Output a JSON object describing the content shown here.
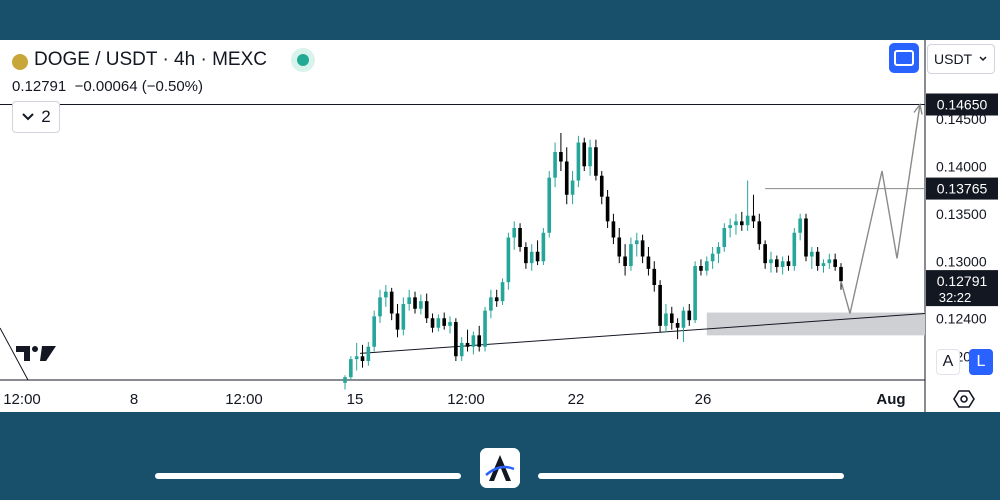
{
  "header": {
    "symbol": "DOGE / USDT · 4h · MEXC",
    "last": "0.12791",
    "change": "−0.00064",
    "change_pct": "(−0.50%)",
    "indicators_count": "2",
    "currency": "USDT",
    "mode_auto": "A",
    "mode_log": "L"
  },
  "icons": {
    "coin": "doge-coin-icon",
    "live": "market-open-icon",
    "fullscreen": "fullscreen-icon",
    "chevron": "chevron-down-icon",
    "settings": "settings-icon",
    "watermark": "tradingview-logo-icon",
    "brand": "brand-logo-icon"
  },
  "colors": {
    "up": "#26a69a",
    "down": "#000000",
    "accent": "#2962ff",
    "background": "#184f6b"
  },
  "chart_data": {
    "type": "candlestick",
    "symbol": "DOGE / USDT",
    "interval": "4h",
    "exchange": "MEXC",
    "x_ticks": [
      "12:00",
      "8",
      "12:00",
      "15",
      "12:00",
      "22",
      "26",
      "Aug"
    ],
    "y_ticks": [
      0.12,
      0.124,
      0.13,
      0.135,
      0.14,
      0.145
    ],
    "y_tick_labels": [
      "0.12000",
      "0.12400",
      "0.13000",
      "0.13500",
      "0.14000",
      "0.14500"
    ],
    "ylim": [
      0.1175,
      0.1475
    ],
    "price_labels": [
      {
        "value": 0.1465,
        "text": "0.14650",
        "countdown": ""
      },
      {
        "value": 0.13765,
        "text": "0.13765",
        "countdown": ""
      },
      {
        "value": 0.12791,
        "text": "0.12791",
        "countdown": "32:22"
      }
    ],
    "candles": [
      {
        "o": 0.1172,
        "h": 0.118,
        "l": 0.1165,
        "c": 0.1178
      },
      {
        "o": 0.1178,
        "h": 0.12,
        "l": 0.1175,
        "c": 0.1197
      },
      {
        "o": 0.1197,
        "h": 0.1214,
        "l": 0.1185,
        "c": 0.12
      },
      {
        "o": 0.12,
        "h": 0.1212,
        "l": 0.1188,
        "c": 0.1195
      },
      {
        "o": 0.1195,
        "h": 0.1215,
        "l": 0.119,
        "c": 0.121
      },
      {
        "o": 0.121,
        "h": 0.1248,
        "l": 0.1205,
        "c": 0.1242
      },
      {
        "o": 0.1242,
        "h": 0.127,
        "l": 0.1235,
        "c": 0.1262
      },
      {
        "o": 0.1262,
        "h": 0.1275,
        "l": 0.1252,
        "c": 0.1268
      },
      {
        "o": 0.1268,
        "h": 0.1272,
        "l": 0.1238,
        "c": 0.1245
      },
      {
        "o": 0.1245,
        "h": 0.1255,
        "l": 0.122,
        "c": 0.1228
      },
      {
        "o": 0.1228,
        "h": 0.1262,
        "l": 0.1222,
        "c": 0.1255
      },
      {
        "o": 0.1255,
        "h": 0.127,
        "l": 0.1248,
        "c": 0.1262
      },
      {
        "o": 0.1262,
        "h": 0.1268,
        "l": 0.1245,
        "c": 0.125
      },
      {
        "o": 0.125,
        "h": 0.1265,
        "l": 0.1244,
        "c": 0.1258
      },
      {
        "o": 0.1258,
        "h": 0.1266,
        "l": 0.1235,
        "c": 0.124
      },
      {
        "o": 0.124,
        "h": 0.1245,
        "l": 0.1225,
        "c": 0.123
      },
      {
        "o": 0.123,
        "h": 0.1244,
        "l": 0.1226,
        "c": 0.124
      },
      {
        "o": 0.124,
        "h": 0.1246,
        "l": 0.1228,
        "c": 0.1232
      },
      {
        "o": 0.1232,
        "h": 0.1242,
        "l": 0.1224,
        "c": 0.1236
      },
      {
        "o": 0.1236,
        "h": 0.124,
        "l": 0.1195,
        "c": 0.12
      },
      {
        "o": 0.12,
        "h": 0.122,
        "l": 0.1195,
        "c": 0.1214
      },
      {
        "o": 0.1214,
        "h": 0.1228,
        "l": 0.1205,
        "c": 0.121
      },
      {
        "o": 0.121,
        "h": 0.1226,
        "l": 0.1202,
        "c": 0.1222
      },
      {
        "o": 0.1222,
        "h": 0.1232,
        "l": 0.1205,
        "c": 0.121
      },
      {
        "o": 0.121,
        "h": 0.1252,
        "l": 0.1205,
        "c": 0.1248
      },
      {
        "o": 0.1248,
        "h": 0.127,
        "l": 0.124,
        "c": 0.1262
      },
      {
        "o": 0.1262,
        "h": 0.127,
        "l": 0.1252,
        "c": 0.1258
      },
      {
        "o": 0.1258,
        "h": 0.1282,
        "l": 0.1254,
        "c": 0.1278
      },
      {
        "o": 0.1278,
        "h": 0.133,
        "l": 0.127,
        "c": 0.1325
      },
      {
        "o": 0.1325,
        "h": 0.1342,
        "l": 0.1312,
        "c": 0.1335
      },
      {
        "o": 0.1335,
        "h": 0.134,
        "l": 0.131,
        "c": 0.1315
      },
      {
        "o": 0.1315,
        "h": 0.132,
        "l": 0.1292,
        "c": 0.1298
      },
      {
        "o": 0.1298,
        "h": 0.1318,
        "l": 0.129,
        "c": 0.131
      },
      {
        "o": 0.131,
        "h": 0.1322,
        "l": 0.1296,
        "c": 0.13
      },
      {
        "o": 0.13,
        "h": 0.1335,
        "l": 0.1296,
        "c": 0.133
      },
      {
        "o": 0.133,
        "h": 0.1395,
        "l": 0.1325,
        "c": 0.1388
      },
      {
        "o": 0.1388,
        "h": 0.1425,
        "l": 0.1378,
        "c": 0.1415
      },
      {
        "o": 0.1415,
        "h": 0.1435,
        "l": 0.1395,
        "c": 0.1405
      },
      {
        "o": 0.1405,
        "h": 0.142,
        "l": 0.136,
        "c": 0.137
      },
      {
        "o": 0.137,
        "h": 0.1395,
        "l": 0.136,
        "c": 0.1385
      },
      {
        "o": 0.1385,
        "h": 0.1432,
        "l": 0.1378,
        "c": 0.1425
      },
      {
        "o": 0.1425,
        "h": 0.143,
        "l": 0.1395,
        "c": 0.14
      },
      {
        "o": 0.14,
        "h": 0.1428,
        "l": 0.139,
        "c": 0.142
      },
      {
        "o": 0.142,
        "h": 0.1428,
        "l": 0.1385,
        "c": 0.139
      },
      {
        "o": 0.139,
        "h": 0.1395,
        "l": 0.136,
        "c": 0.1368
      },
      {
        "o": 0.1368,
        "h": 0.1375,
        "l": 0.1335,
        "c": 0.1342
      },
      {
        "o": 0.1342,
        "h": 0.135,
        "l": 0.1318,
        "c": 0.1325
      },
      {
        "o": 0.1325,
        "h": 0.1335,
        "l": 0.1298,
        "c": 0.1305
      },
      {
        "o": 0.1305,
        "h": 0.1318,
        "l": 0.1285,
        "c": 0.1295
      },
      {
        "o": 0.1295,
        "h": 0.1325,
        "l": 0.129,
        "c": 0.1318
      },
      {
        "o": 0.1318,
        "h": 0.133,
        "l": 0.1305,
        "c": 0.1322
      },
      {
        "o": 0.1322,
        "h": 0.1328,
        "l": 0.1298,
        "c": 0.1305
      },
      {
        "o": 0.1305,
        "h": 0.1315,
        "l": 0.1285,
        "c": 0.1292
      },
      {
        "o": 0.1292,
        "h": 0.13,
        "l": 0.1268,
        "c": 0.1275
      },
      {
        "o": 0.1275,
        "h": 0.128,
        "l": 0.1225,
        "c": 0.1232
      },
      {
        "o": 0.1232,
        "h": 0.1255,
        "l": 0.1225,
        "c": 0.1245
      },
      {
        "o": 0.1245,
        "h": 0.1252,
        "l": 0.1228,
        "c": 0.1235
      },
      {
        "o": 0.1235,
        "h": 0.124,
        "l": 0.1218,
        "c": 0.123
      },
      {
        "o": 0.123,
        "h": 0.1252,
        "l": 0.1215,
        "c": 0.1248
      },
      {
        "o": 0.1248,
        "h": 0.1255,
        "l": 0.1232,
        "c": 0.1238
      },
      {
        "o": 0.1238,
        "h": 0.13,
        "l": 0.1235,
        "c": 0.1295
      },
      {
        "o": 0.1295,
        "h": 0.1302,
        "l": 0.1285,
        "c": 0.129
      },
      {
        "o": 0.129,
        "h": 0.1305,
        "l": 0.1285,
        "c": 0.13
      },
      {
        "o": 0.13,
        "h": 0.1315,
        "l": 0.1292,
        "c": 0.1308
      },
      {
        "o": 0.1308,
        "h": 0.132,
        "l": 0.1298,
        "c": 0.1315
      },
      {
        "o": 0.1315,
        "h": 0.134,
        "l": 0.131,
        "c": 0.1335
      },
      {
        "o": 0.1335,
        "h": 0.1345,
        "l": 0.1325,
        "c": 0.1338
      },
      {
        "o": 0.1338,
        "h": 0.135,
        "l": 0.1328,
        "c": 0.1342
      },
      {
        "o": 0.1342,
        "h": 0.1352,
        "l": 0.1332,
        "c": 0.1338
      },
      {
        "o": 0.1338,
        "h": 0.1385,
        "l": 0.1332,
        "c": 0.1348
      },
      {
        "o": 0.1348,
        "h": 0.137,
        "l": 0.1335,
        "c": 0.1342
      },
      {
        "o": 0.1342,
        "h": 0.135,
        "l": 0.1312,
        "c": 0.1318
      },
      {
        "o": 0.1318,
        "h": 0.1322,
        "l": 0.1292,
        "c": 0.1298
      },
      {
        "o": 0.1298,
        "h": 0.131,
        "l": 0.1288,
        "c": 0.1302
      },
      {
        "o": 0.1302,
        "h": 0.1306,
        "l": 0.1288,
        "c": 0.1294
      },
      {
        "o": 0.1294,
        "h": 0.1305,
        "l": 0.1286,
        "c": 0.13
      },
      {
        "o": 0.13,
        "h": 0.1306,
        "l": 0.129,
        "c": 0.1295
      },
      {
        "o": 0.1295,
        "h": 0.1335,
        "l": 0.129,
        "c": 0.133
      },
      {
        "o": 0.133,
        "h": 0.135,
        "l": 0.1322,
        "c": 0.1345
      },
      {
        "o": 0.1345,
        "h": 0.135,
        "l": 0.13,
        "c": 0.1305
      },
      {
        "o": 0.1305,
        "h": 0.1315,
        "l": 0.1292,
        "c": 0.131
      },
      {
        "o": 0.131,
        "h": 0.1315,
        "l": 0.129,
        "c": 0.1295
      },
      {
        "o": 0.1295,
        "h": 0.1302,
        "l": 0.1288,
        "c": 0.1298
      },
      {
        "o": 0.1298,
        "h": 0.1308,
        "l": 0.1292,
        "c": 0.1302
      },
      {
        "o": 0.1302,
        "h": 0.1308,
        "l": 0.129,
        "c": 0.1294
      },
      {
        "o": 0.1294,
        "h": 0.1298,
        "l": 0.127,
        "c": 0.1279
      }
    ],
    "annotations": {
      "demand_zone": {
        "from": 0.1222,
        "to": 0.1246
      },
      "resistance_line": 0.13765,
      "top_line": 0.1465,
      "trendline": [
        [
          0.1203,
          0.1245
        ]
      ],
      "projected_path": [
        0.1279,
        0.1245,
        0.1395,
        0.1303,
        0.1465
      ]
    }
  }
}
